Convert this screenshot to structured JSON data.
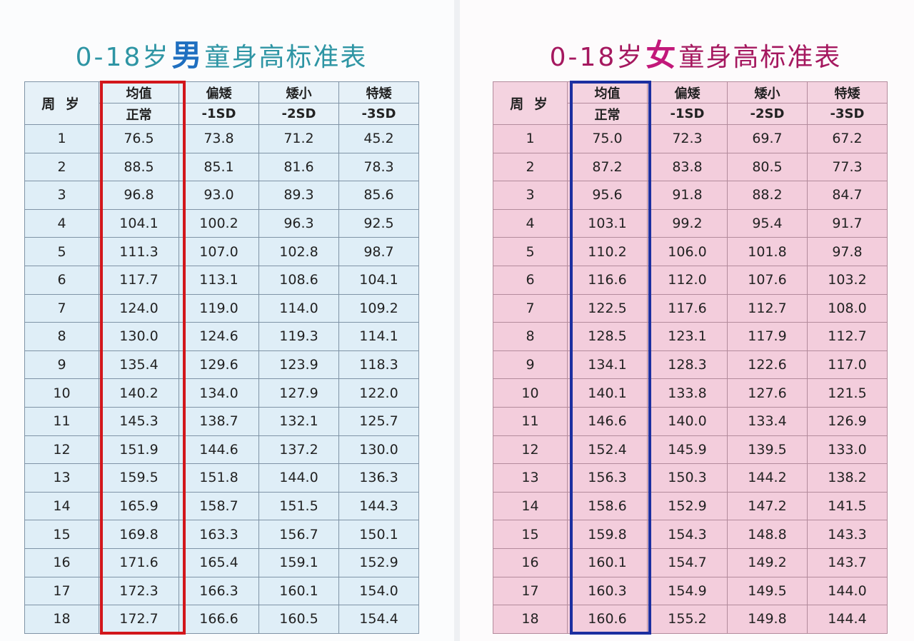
{
  "boys": {
    "title": {
      "age_prefix": "0-18岁",
      "gender": "男",
      "suffix": "童身高标准表"
    },
    "headers": {
      "age": "周 岁",
      "columns": [
        {
          "top": "均值",
          "bottom": "正常"
        },
        {
          "top": "偏矮",
          "bottom": "-1SD"
        },
        {
          "top": "矮小",
          "bottom": "-2SD"
        },
        {
          "top": "特矮",
          "bottom": "-3SD"
        }
      ]
    },
    "rows": [
      [
        "1",
        "76.5",
        "73.8",
        "71.2",
        "45.2"
      ],
      [
        "2",
        "88.5",
        "85.1",
        "81.6",
        "78.3"
      ],
      [
        "3",
        "96.8",
        "93.0",
        "89.3",
        "85.6"
      ],
      [
        "4",
        "104.1",
        "100.2",
        "96.3",
        "92.5"
      ],
      [
        "5",
        "111.3",
        "107.0",
        "102.8",
        "98.7"
      ],
      [
        "6",
        "117.7",
        "113.1",
        "108.6",
        "104.1"
      ],
      [
        "7",
        "124.0",
        "119.0",
        "114.0",
        "109.2"
      ],
      [
        "8",
        "130.0",
        "124.6",
        "119.3",
        "114.1"
      ],
      [
        "9",
        "135.4",
        "129.6",
        "123.9",
        "118.3"
      ],
      [
        "10",
        "140.2",
        "134.0",
        "127.9",
        "122.0"
      ],
      [
        "11",
        "145.3",
        "138.7",
        "132.1",
        "125.7"
      ],
      [
        "12",
        "151.9",
        "144.6",
        "137.2",
        "130.0"
      ],
      [
        "13",
        "159.5",
        "151.8",
        "144.0",
        "136.3"
      ],
      [
        "14",
        "165.9",
        "158.7",
        "151.5",
        "144.3"
      ],
      [
        "15",
        "169.8",
        "163.3",
        "156.7",
        "150.1"
      ],
      [
        "16",
        "171.6",
        "165.4",
        "159.1",
        "152.9"
      ],
      [
        "17",
        "172.3",
        "166.3",
        "160.1",
        "154.0"
      ],
      [
        "18",
        "172.7",
        "166.6",
        "160.5",
        "154.4"
      ]
    ],
    "colors": {
      "title": "#2e95a4",
      "gender": "#1f6fc0",
      "table_bg": "#dfeef7",
      "highlight": "#d2161b"
    }
  },
  "girls": {
    "title": {
      "age_prefix": "0-18岁",
      "gender": "女",
      "suffix": "童身高标准表"
    },
    "headers": {
      "age": "周 岁",
      "columns": [
        {
          "top": "均值",
          "bottom": "正常"
        },
        {
          "top": "偏矮",
          "bottom": "-1SD"
        },
        {
          "top": "矮小",
          "bottom": "-2SD"
        },
        {
          "top": "特矮",
          "bottom": "-3SD"
        }
      ]
    },
    "rows": [
      [
        "1",
        "75.0",
        "72.3",
        "69.7",
        "67.2"
      ],
      [
        "2",
        "87.2",
        "83.8",
        "80.5",
        "77.3"
      ],
      [
        "3",
        "95.6",
        "91.8",
        "88.2",
        "84.7"
      ],
      [
        "4",
        "103.1",
        "99.2",
        "95.4",
        "91.7"
      ],
      [
        "5",
        "110.2",
        "106.0",
        "101.8",
        "97.8"
      ],
      [
        "6",
        "116.6",
        "112.0",
        "107.6",
        "103.2"
      ],
      [
        "7",
        "122.5",
        "117.6",
        "112.7",
        "108.0"
      ],
      [
        "8",
        "128.5",
        "123.1",
        "117.9",
        "112.7"
      ],
      [
        "9",
        "134.1",
        "128.3",
        "122.6",
        "117.0"
      ],
      [
        "10",
        "140.1",
        "133.8",
        "127.6",
        "121.5"
      ],
      [
        "11",
        "146.6",
        "140.0",
        "133.4",
        "126.9"
      ],
      [
        "12",
        "152.4",
        "145.9",
        "139.5",
        "133.0"
      ],
      [
        "13",
        "156.3",
        "150.3",
        "144.2",
        "138.2"
      ],
      [
        "14",
        "158.6",
        "152.9",
        "147.2",
        "141.5"
      ],
      [
        "15",
        "159.8",
        "154.3",
        "148.8",
        "143.3"
      ],
      [
        "16",
        "160.1",
        "154.7",
        "149.2",
        "143.7"
      ],
      [
        "17",
        "160.3",
        "154.9",
        "149.5",
        "144.0"
      ],
      [
        "18",
        "160.6",
        "155.2",
        "149.8",
        "144.4"
      ]
    ],
    "colors": {
      "title": "#a5185f",
      "gender": "#c2187a",
      "table_bg": "#f3cddc",
      "highlight": "#1c2fa0"
    }
  }
}
